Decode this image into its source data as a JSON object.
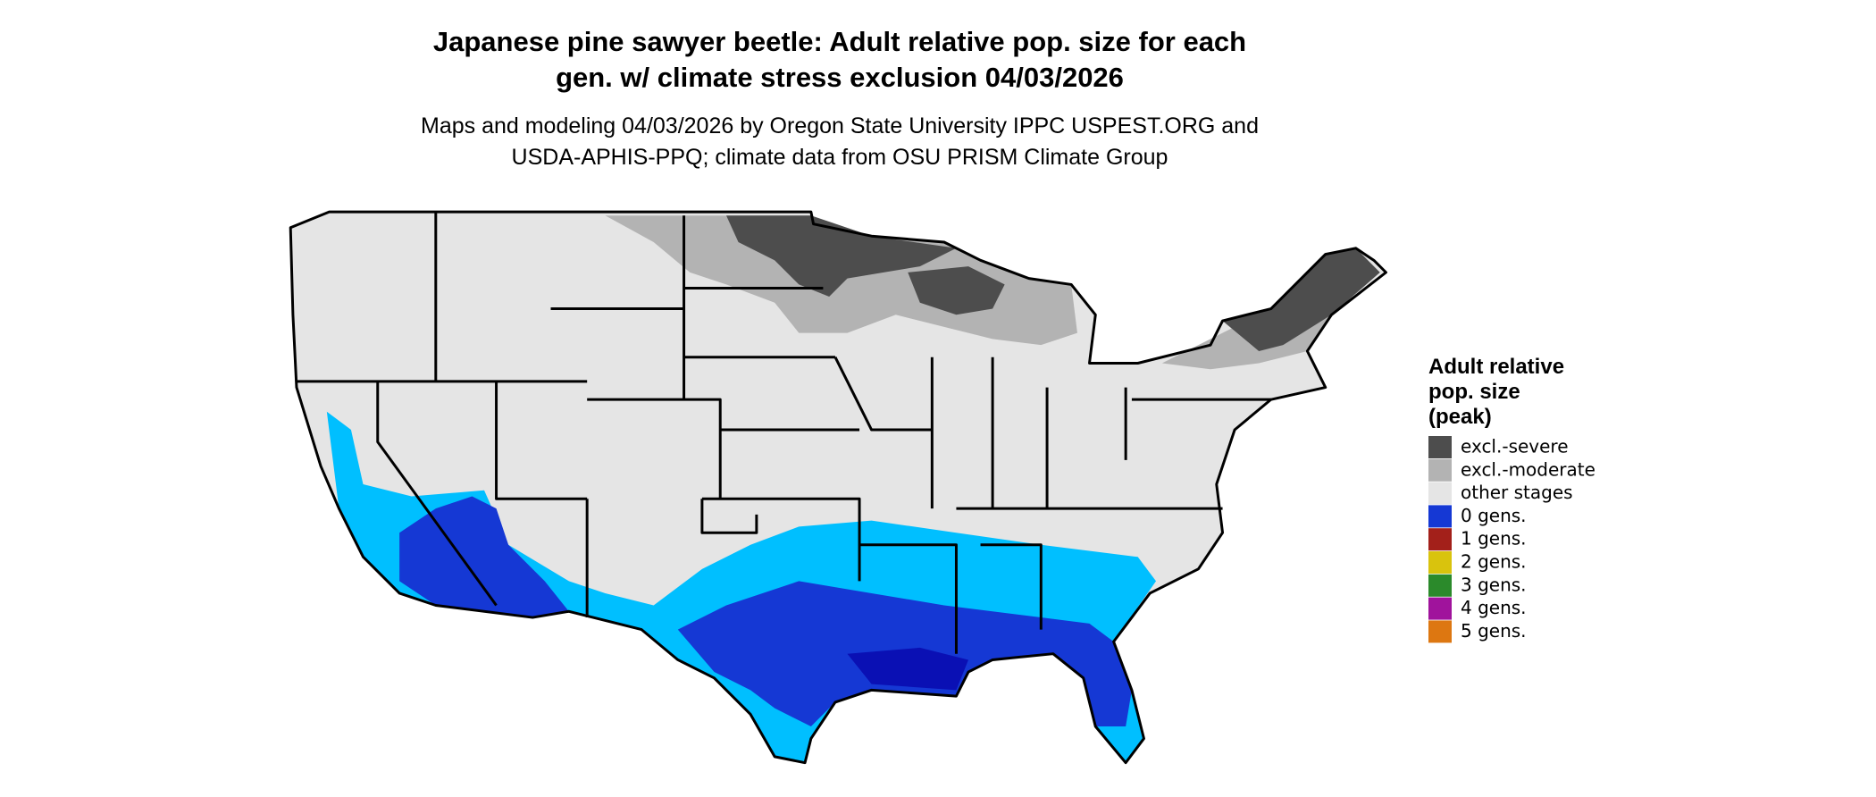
{
  "title": [
    "Japanese pine sawyer beetle: Adult relative pop. size for each",
    "gen. w/ climate stress exclusion 04/03/2026"
  ],
  "subtitle": [
    "Maps and modeling 04/03/2026 by Oregon State University IPPC USPEST.ORG and",
    "USDA-APHIS-PPQ; climate data from OSU PRISM Climate Group"
  ],
  "legend": {
    "title": [
      "Adult relative",
      "pop. size",
      "(peak)"
    ],
    "items": [
      {
        "label": "excl.-severe",
        "color": "#4d4d4d"
      },
      {
        "label": "excl.-moderate",
        "color": "#b3b3b3"
      },
      {
        "label": "other stages",
        "color": "#e5e5e5"
      },
      {
        "label": "0 gens.",
        "color": "#1538d4"
      },
      {
        "label": "1 gens.",
        "color": "#a3201a"
      },
      {
        "label": "2 gens.",
        "color": "#d9c30d"
      },
      {
        "label": "3 gens.",
        "color": "#2b8a2b"
      },
      {
        "label": "4 gens.",
        "color": "#a0139c"
      },
      {
        "label": "5 gens.",
        "color": "#dd7711"
      }
    ]
  }
}
